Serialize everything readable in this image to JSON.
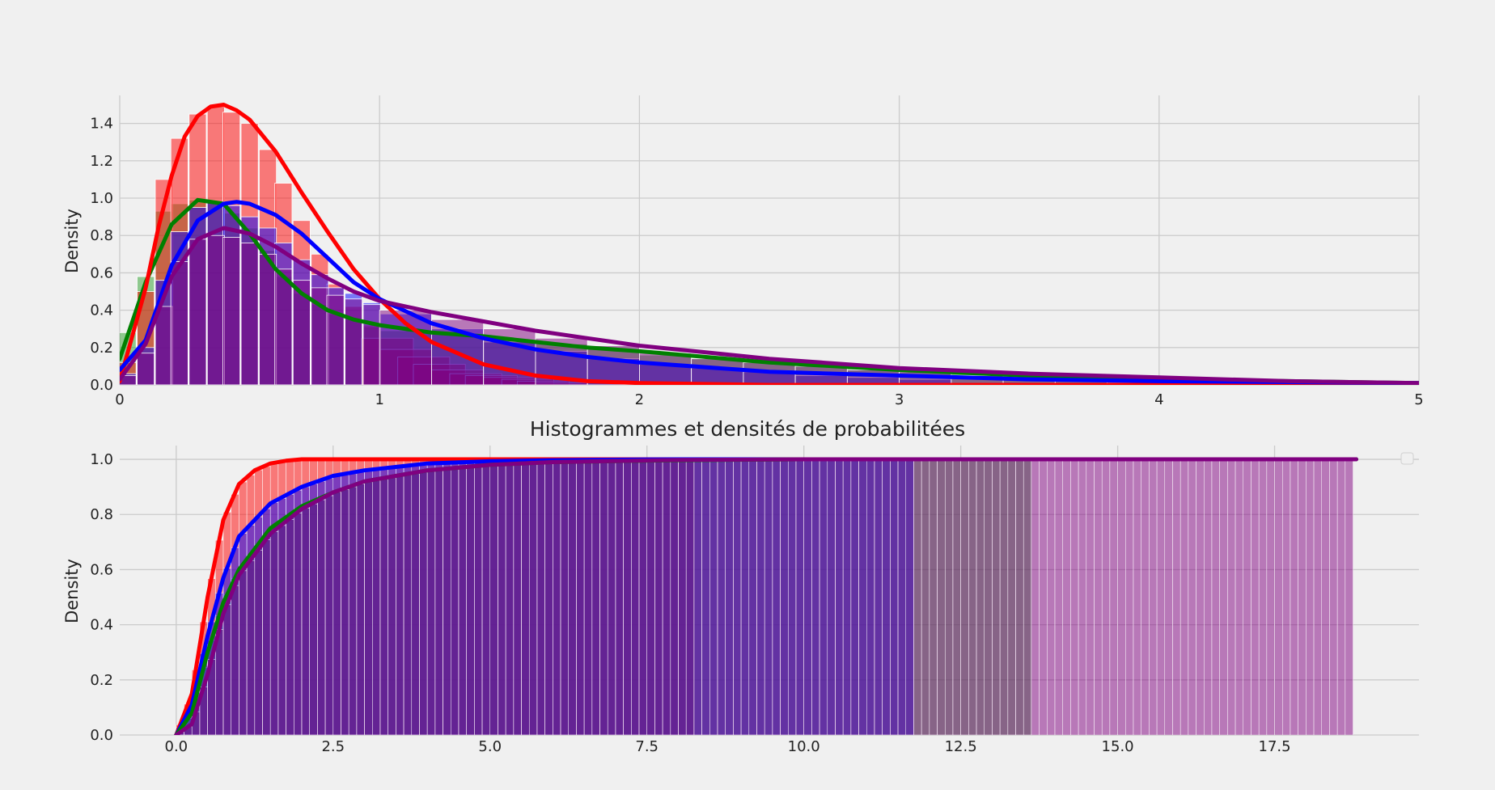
{
  "chart_data": [
    {
      "type": "area",
      "title": "",
      "xlabel": "",
      "ylabel": "Density",
      "xlim": [
        0,
        5
      ],
      "ylim": [
        0,
        1.55
      ],
      "xticks": [
        "0",
        "1",
        "2",
        "3",
        "4",
        "5"
      ],
      "yticks": [
        "0.0",
        "0.2",
        "0.4",
        "0.6",
        "0.8",
        "1.0",
        "1.2",
        "1.4"
      ],
      "grid": true,
      "histograms": [
        {
          "color": "#2ca02c",
          "x": [
            0.03,
            0.1,
            0.17,
            0.23,
            0.3,
            0.37,
            0.43,
            0.5,
            0.57,
            0.63,
            0.7,
            0.77,
            0.83,
            0.9,
            0.97,
            1.1,
            1.3,
            1.5,
            1.7,
            1.9,
            2.1,
            2.3,
            2.5,
            2.7,
            2.9,
            3.1,
            3.3,
            3.5,
            3.7
          ],
          "values": [
            0.28,
            0.58,
            0.93,
            0.97,
            0.99,
            0.98,
            0.92,
            0.84,
            0.72,
            0.58,
            0.49,
            0.43,
            0.38,
            0.35,
            0.31,
            0.29,
            0.27,
            0.24,
            0.22,
            0.19,
            0.16,
            0.14,
            0.12,
            0.1,
            0.09,
            0.07,
            0.06,
            0.05,
            0.04
          ]
        },
        {
          "color": "#ff0000",
          "x": [
            0.03,
            0.1,
            0.17,
            0.23,
            0.3,
            0.37,
            0.43,
            0.5,
            0.57,
            0.63,
            0.7,
            0.77,
            0.83,
            0.9,
            0.97,
            1.03,
            1.1,
            1.17,
            1.23,
            1.3,
            1.37,
            1.43,
            1.5,
            1.57,
            1.63,
            1.7
          ],
          "values": [
            0.12,
            0.5,
            1.1,
            1.32,
            1.45,
            1.49,
            1.46,
            1.4,
            1.26,
            1.08,
            0.88,
            0.7,
            0.54,
            0.42,
            0.32,
            0.25,
            0.19,
            0.15,
            0.11,
            0.08,
            0.06,
            0.05,
            0.04,
            0.03,
            0.02,
            0.01
          ]
        },
        {
          "color": "#0000ff",
          "x": [
            0.03,
            0.1,
            0.17,
            0.23,
            0.3,
            0.37,
            0.43,
            0.5,
            0.57,
            0.63,
            0.7,
            0.77,
            0.83,
            0.9,
            0.97,
            1.1,
            1.3,
            1.5,
            1.7,
            1.9,
            2.1,
            2.3,
            2.5,
            2.7,
            2.9,
            3.1
          ],
          "values": [
            0.06,
            0.2,
            0.56,
            0.82,
            0.95,
            0.98,
            0.96,
            0.9,
            0.84,
            0.76,
            0.67,
            0.59,
            0.52,
            0.49,
            0.44,
            0.38,
            0.3,
            0.23,
            0.18,
            0.14,
            0.11,
            0.09,
            0.07,
            0.05,
            0.04,
            0.03
          ]
        },
        {
          "color": "#800080",
          "x": [
            0.03,
            0.1,
            0.17,
            0.23,
            0.3,
            0.37,
            0.43,
            0.5,
            0.57,
            0.63,
            0.7,
            0.77,
            0.83,
            0.9,
            0.97,
            1.1,
            1.3,
            1.5,
            1.7,
            1.9,
            2.1,
            2.3,
            2.5,
            2.7,
            2.9,
            3.1,
            3.3,
            3.5,
            3.7,
            3.9,
            4.1
          ],
          "values": [
            0.05,
            0.17,
            0.42,
            0.66,
            0.78,
            0.8,
            0.79,
            0.76,
            0.7,
            0.62,
            0.56,
            0.52,
            0.48,
            0.46,
            0.43,
            0.4,
            0.35,
            0.3,
            0.25,
            0.21,
            0.17,
            0.14,
            0.12,
            0.1,
            0.08,
            0.07,
            0.05,
            0.04,
            0.03,
            0.03,
            0.02
          ]
        }
      ],
      "series": [
        {
          "color": "#008000",
          "x": [
            0,
            0.1,
            0.2,
            0.3,
            0.4,
            0.5,
            0.6,
            0.7,
            0.8,
            0.9,
            1,
            1.2,
            1.4,
            1.6,
            1.8,
            2,
            2.5,
            3,
            3.5,
            4,
            4.5,
            5
          ],
          "values": [
            0.14,
            0.55,
            0.86,
            0.99,
            0.97,
            0.81,
            0.62,
            0.49,
            0.4,
            0.35,
            0.32,
            0.28,
            0.26,
            0.23,
            0.2,
            0.18,
            0.12,
            0.08,
            0.05,
            0.03,
            0.02,
            0.01
          ]
        },
        {
          "color": "#ff0000",
          "x": [
            0,
            0.1,
            0.15,
            0.2,
            0.25,
            0.3,
            0.35,
            0.4,
            0.45,
            0.5,
            0.6,
            0.7,
            0.8,
            0.9,
            1,
            1.1,
            1.2,
            1.4,
            1.6,
            1.8,
            2,
            2.5,
            5
          ],
          "values": [
            0.02,
            0.52,
            0.85,
            1.12,
            1.33,
            1.44,
            1.49,
            1.5,
            1.47,
            1.42,
            1.25,
            1.03,
            0.82,
            0.62,
            0.46,
            0.33,
            0.23,
            0.11,
            0.05,
            0.02,
            0.01,
            0,
            0
          ]
        },
        {
          "color": "#0000ff",
          "x": [
            0,
            0.1,
            0.2,
            0.3,
            0.4,
            0.45,
            0.5,
            0.6,
            0.7,
            0.8,
            0.9,
            1,
            1.2,
            1.4,
            1.6,
            1.8,
            2,
            2.5,
            3,
            3.5,
            4,
            5
          ],
          "values": [
            0.08,
            0.24,
            0.64,
            0.88,
            0.97,
            0.98,
            0.97,
            0.91,
            0.81,
            0.68,
            0.55,
            0.46,
            0.33,
            0.25,
            0.19,
            0.15,
            0.12,
            0.07,
            0.05,
            0.03,
            0.02,
            0.01
          ]
        },
        {
          "color": "#800080",
          "x": [
            0,
            0.1,
            0.2,
            0.3,
            0.4,
            0.5,
            0.6,
            0.7,
            0.8,
            0.9,
            1,
            1.2,
            1.4,
            1.6,
            1.8,
            2,
            2.5,
            3,
            3.5,
            4,
            4.5,
            5
          ],
          "values": [
            0.03,
            0.22,
            0.58,
            0.78,
            0.84,
            0.81,
            0.74,
            0.65,
            0.57,
            0.5,
            0.45,
            0.39,
            0.34,
            0.29,
            0.25,
            0.21,
            0.14,
            0.09,
            0.06,
            0.04,
            0.02,
            0.01
          ]
        }
      ]
    },
    {
      "type": "area",
      "title": "Histogrammes et densités de probabilitées",
      "xlabel": "",
      "ylabel": "Density",
      "xlim": [
        -0.9,
        19.8
      ],
      "ylim": [
        0,
        1.05
      ],
      "xticks": [
        "0.0",
        "2.5",
        "5.0",
        "7.5",
        "10.0",
        "12.5",
        "15.0",
        "17.5"
      ],
      "yticks": [
        "0.0",
        "0.2",
        "0.4",
        "0.6",
        "0.8",
        "1.0"
      ],
      "grid": true,
      "legend": "top-right",
      "histograms": [
        {
          "color": "#ff0000",
          "x_end": 8.3
        },
        {
          "color": "#2ca02c",
          "x_end": 13.6
        },
        {
          "color": "#0000ff",
          "x_end": 11.8
        },
        {
          "color": "#800080",
          "x_end": 18.8
        }
      ],
      "series": [
        {
          "color": "#ff0000",
          "x": [
            0,
            0.25,
            0.5,
            0.75,
            1,
            1.25,
            1.5,
            1.75,
            2,
            2.5,
            3,
            18.8
          ],
          "values": [
            0,
            0.15,
            0.5,
            0.78,
            0.91,
            0.96,
            0.985,
            0.995,
            1,
            1,
            1,
            1
          ]
        },
        {
          "color": "#0000ff",
          "x": [
            0,
            0.25,
            0.5,
            0.75,
            1,
            1.5,
            2,
            2.5,
            3,
            4,
            5,
            6,
            8,
            12,
            18.8
          ],
          "values": [
            0,
            0.11,
            0.36,
            0.57,
            0.72,
            0.84,
            0.9,
            0.94,
            0.96,
            0.985,
            0.993,
            0.997,
            1,
            1,
            1
          ]
        },
        {
          "color": "#008000",
          "x": [
            0,
            0.25,
            0.5,
            0.75,
            1,
            1.5,
            2,
            2.5,
            3,
            4,
            5,
            6,
            8,
            10,
            12,
            18.8
          ],
          "values": [
            0,
            0.08,
            0.3,
            0.48,
            0.6,
            0.75,
            0.83,
            0.88,
            0.92,
            0.96,
            0.98,
            0.99,
            0.997,
            1,
            1,
            1
          ]
        },
        {
          "color": "#800080",
          "x": [
            0,
            0.25,
            0.5,
            0.75,
            1,
            1.5,
            2,
            2.5,
            3,
            4,
            5,
            6,
            8,
            10,
            18.8
          ],
          "values": [
            0,
            0.04,
            0.22,
            0.44,
            0.58,
            0.73,
            0.82,
            0.88,
            0.92,
            0.96,
            0.98,
            0.99,
            0.998,
            1,
            1
          ]
        }
      ]
    }
  ]
}
